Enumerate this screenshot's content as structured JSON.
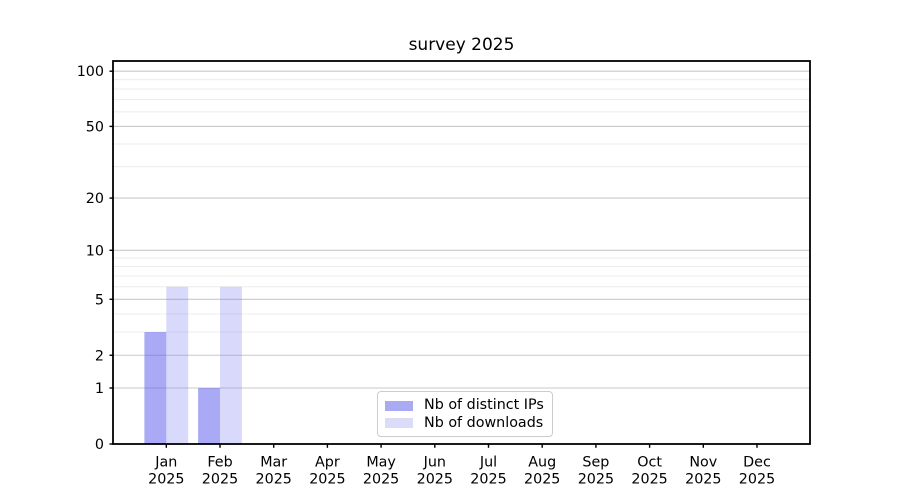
{
  "figure": {
    "background": "#ffffff"
  },
  "chart_data": {
    "type": "bar",
    "title": "survey 2025",
    "months": [
      "Jan",
      "Feb",
      "Mar",
      "Apr",
      "May",
      "Jun",
      "Jul",
      "Aug",
      "Sep",
      "Oct",
      "Nov",
      "Dec"
    ],
    "year_label": "2025",
    "series": [
      {
        "name": "Nb of distinct IPs",
        "color": "#a9a9f4",
        "fill": "rgba(90,90,235,0.52)",
        "values": [
          3,
          1,
          0,
          0,
          0,
          0,
          0,
          0,
          0,
          0,
          0,
          0
        ]
      },
      {
        "name": "Nb of downloads",
        "color": "#dbdbfa",
        "fill": "rgba(120,120,240,0.28)",
        "values": [
          6,
          6,
          0,
          0,
          0,
          0,
          0,
          0,
          0,
          0,
          0,
          0
        ]
      }
    ],
    "y_axis": {
      "scale": "log10(1+y)",
      "major_ticks": [
        0,
        1,
        2,
        5,
        10,
        20,
        50,
        100
      ],
      "minor_ticks": [
        3,
        4,
        6,
        7,
        8,
        9,
        30,
        40,
        60,
        70,
        80,
        90
      ],
      "ylim": [
        0,
        114
      ]
    },
    "grid": {
      "major_color": "#c9c9c9",
      "minor_color": "#ececec",
      "horizontal_only": true
    },
    "axis_color": "#000000",
    "tick_label_color": "#000000",
    "legend_position": "lower center"
  },
  "legend": {
    "items": [
      {
        "label": "Nb of distinct IPs",
        "color": "#a9a9f4"
      },
      {
        "label": "Nb of downloads",
        "color": "#dbdbfa"
      }
    ]
  }
}
